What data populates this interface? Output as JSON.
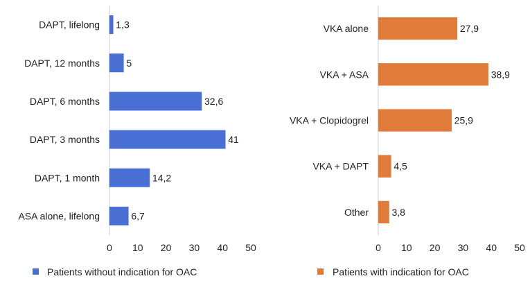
{
  "chart_data": [
    {
      "type": "bar",
      "orientation": "horizontal",
      "categories": [
        "DAPT, lifelong",
        "DAPT, 12 months",
        "DAPT, 6 months",
        "DAPT, 3 months",
        "DAPT, 1 month",
        "ASA alone, lifelong"
      ],
      "values": [
        1.3,
        5,
        32.6,
        41,
        14.2,
        6.7
      ],
      "value_labels": [
        "1,3",
        "5",
        "32,6",
        "41",
        "14,2",
        "6,7"
      ],
      "xlim": [
        0,
        50
      ],
      "xticks": [
        "0",
        "10",
        "20",
        "30",
        "40",
        "50"
      ],
      "legend": "Patients without indication for OAC",
      "color": "#4a6fd4"
    },
    {
      "type": "bar",
      "orientation": "horizontal",
      "categories": [
        "VKA alone",
        "VKA + ASA",
        "VKA + Clopidogrel",
        "VKA + DAPT",
        "Other"
      ],
      "values": [
        27.9,
        38.9,
        25.9,
        4.5,
        3.8
      ],
      "value_labels": [
        "27,9",
        "38,9",
        "25,9",
        "4,5",
        "3,8"
      ],
      "xlim": [
        0,
        50
      ],
      "xticks": [
        "0",
        "10",
        "20",
        "30",
        "40",
        "50"
      ],
      "legend": "Patients with indication for OAC",
      "color": "#e07b39"
    }
  ]
}
